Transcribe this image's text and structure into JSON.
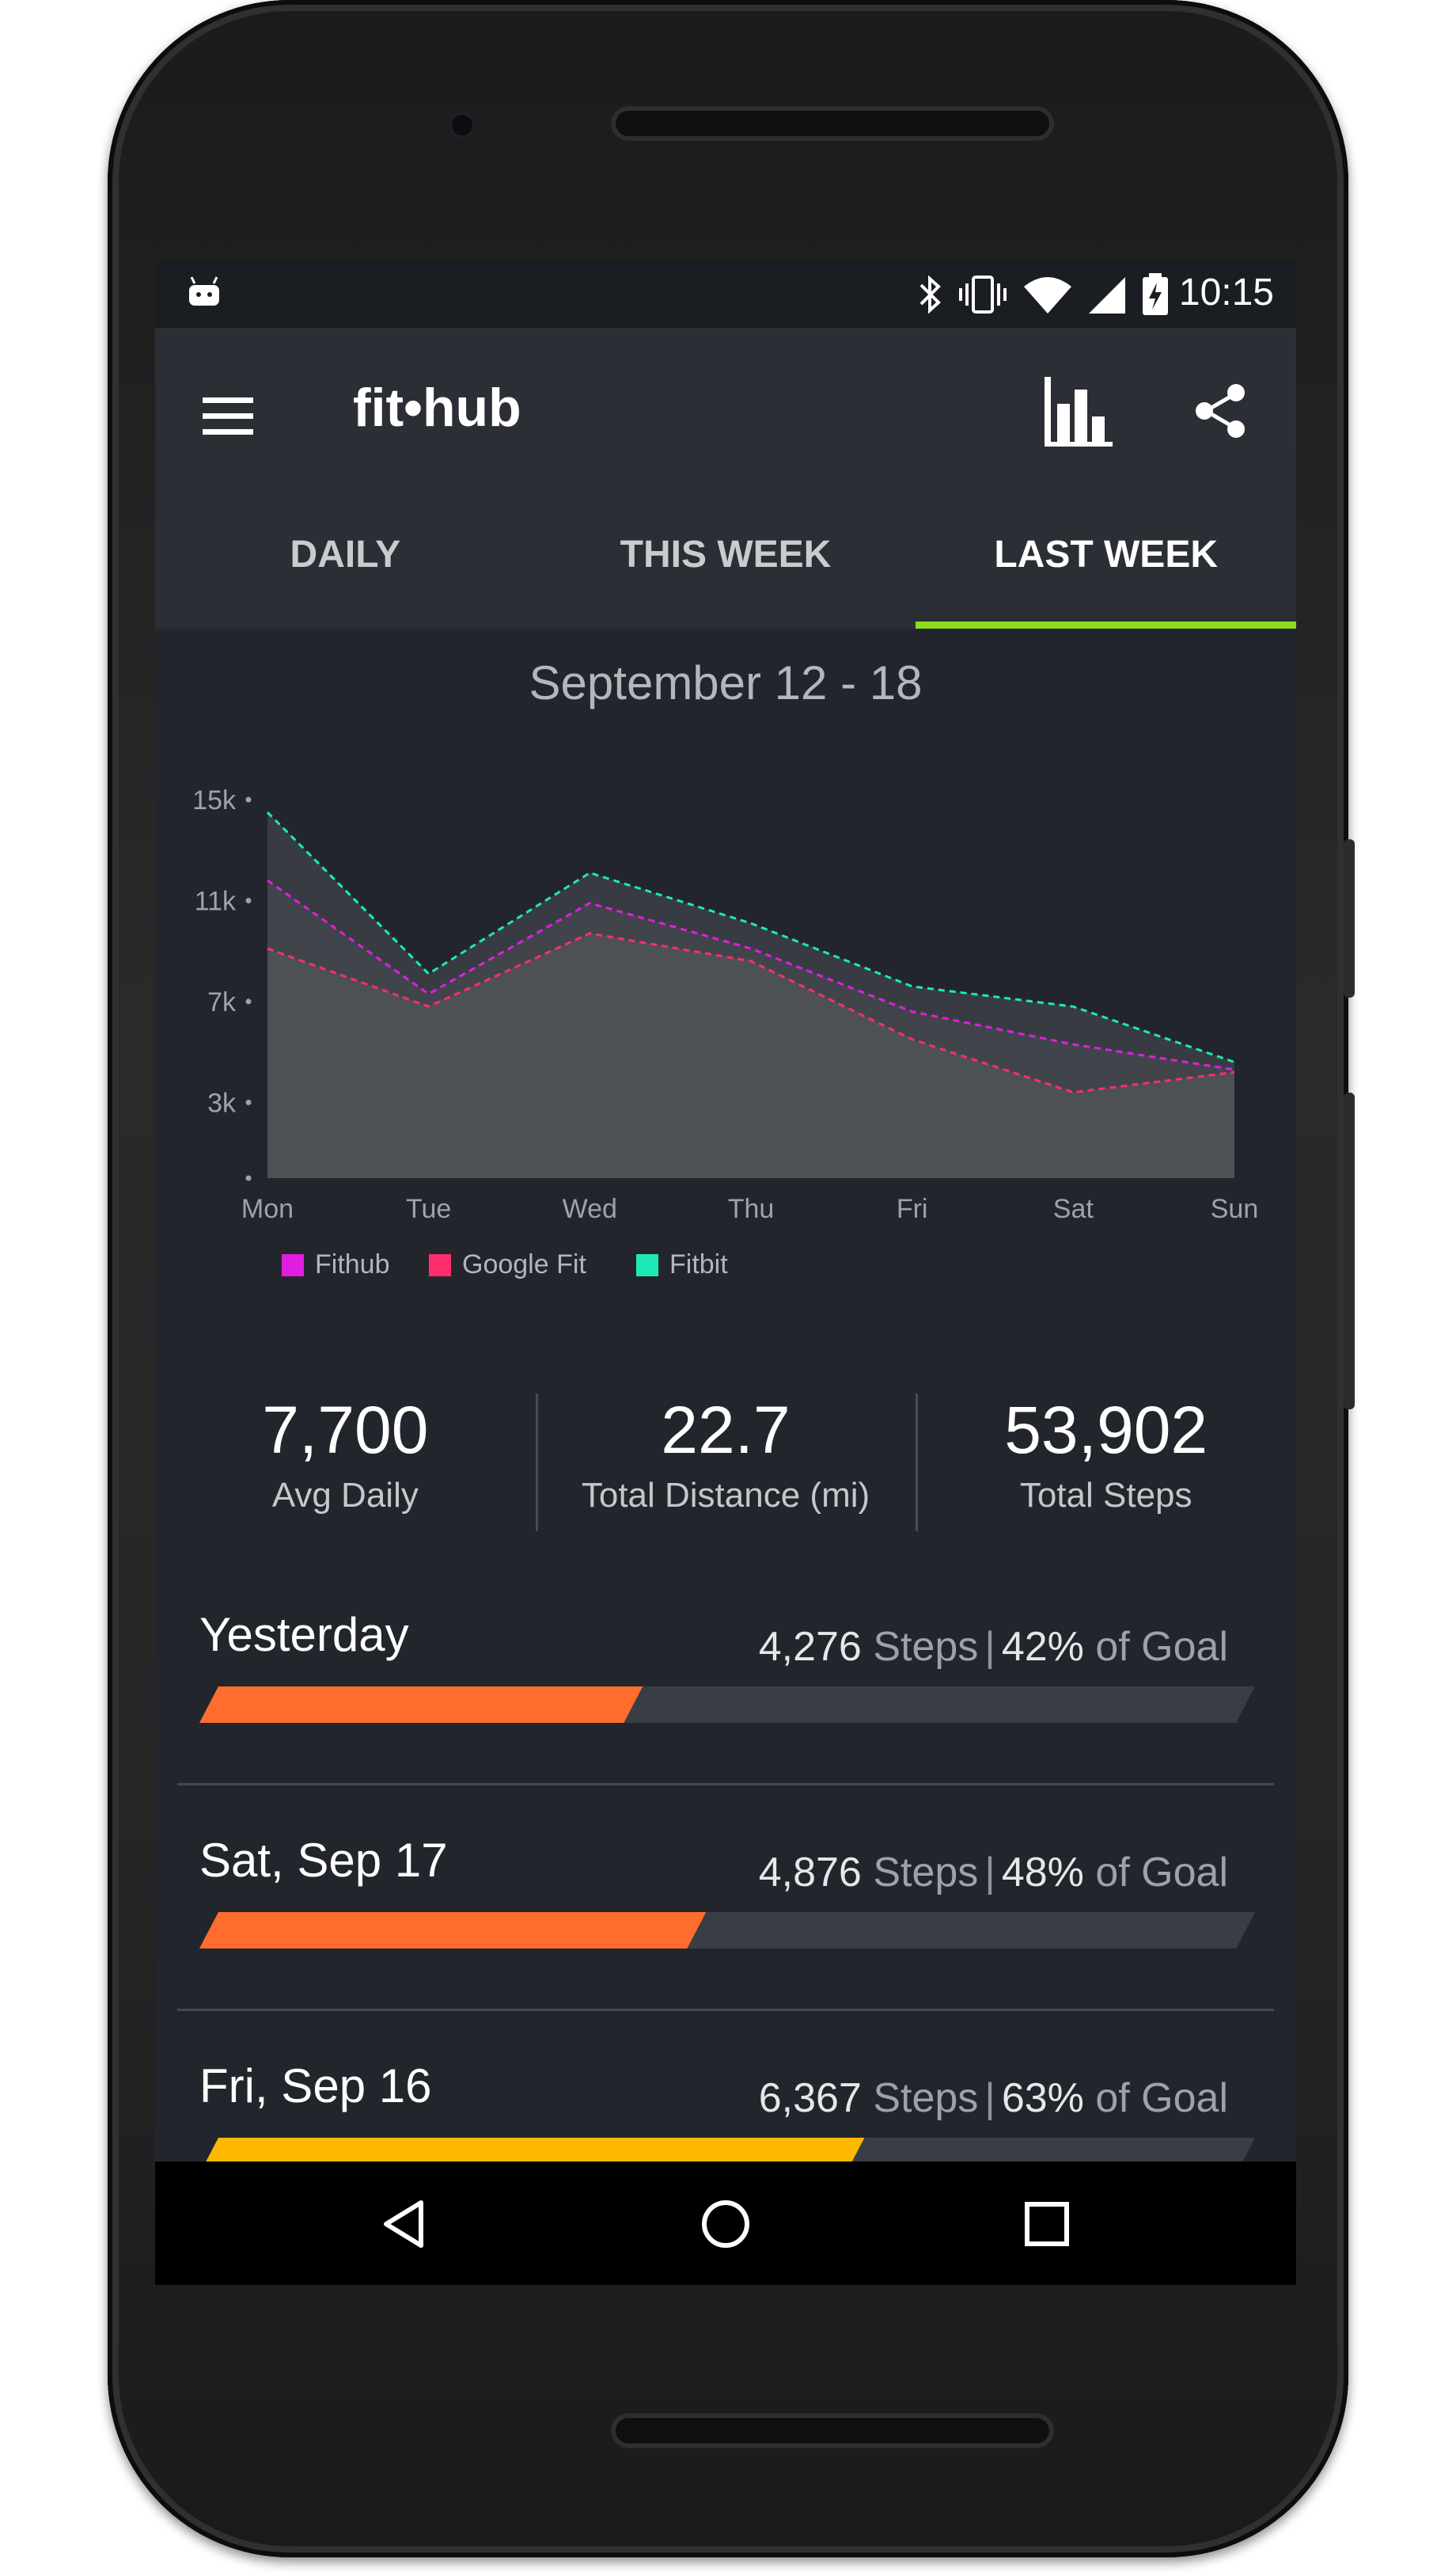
{
  "status_bar": {
    "time": "10:15",
    "icons": [
      "android-icon",
      "bluetooth-icon",
      "vibrate-icon",
      "wifi-icon",
      "signal-icon",
      "battery-charging-icon"
    ]
  },
  "app_bar": {
    "title": "fit•hub",
    "menu_icon": "menu-icon",
    "chart_icon": "bar-chart-icon",
    "share_icon": "share-icon"
  },
  "tabs": [
    {
      "label": "DAILY",
      "active": false
    },
    {
      "label": "THIS WEEK",
      "active": false
    },
    {
      "label": "LAST WEEK",
      "active": true
    }
  ],
  "date_range": "September 12 - 18",
  "chart_data": {
    "type": "area",
    "categories": [
      "Mon",
      "Tue",
      "Wed",
      "Thu",
      "Fri",
      "Sat",
      "Sun"
    ],
    "y_ticks": [
      "15k",
      "11k",
      "7k",
      "3k",
      ""
    ],
    "y_tick_values": [
      15000,
      11000,
      7000,
      3000,
      0
    ],
    "ylim": [
      0,
      15000
    ],
    "series": [
      {
        "name": "Fithub",
        "color": "#e01ee0",
        "values": [
          11800,
          7300,
          10900,
          9100,
          6600,
          5300,
          4300
        ]
      },
      {
        "name": "Google Fit",
        "color": "#ff2d6d",
        "values": [
          9100,
          6800,
          9700,
          8600,
          5500,
          3400,
          4200
        ]
      },
      {
        "name": "Fitbit",
        "color": "#1de9b6",
        "values": [
          14500,
          8100,
          12100,
          10100,
          7600,
          6800,
          4600
        ]
      }
    ],
    "grid": false,
    "legend_position": "bottom-left"
  },
  "stats": [
    {
      "value": "7,700",
      "label": "Avg Daily"
    },
    {
      "value": "22.7",
      "label": "Total Distance (mi)"
    },
    {
      "value": "53,902",
      "label": "Total Steps"
    }
  ],
  "days": [
    {
      "name": "Yesterday",
      "steps": "4,276",
      "steps_word": "Steps",
      "percent": "42%",
      "goal_word": "of Goal",
      "progress": 0.42,
      "color": "#ff6d2e"
    },
    {
      "name": "Sat, Sep 17",
      "steps": "4,876",
      "steps_word": "Steps",
      "percent": "48%",
      "goal_word": "of Goal",
      "progress": 0.48,
      "color": "#ff6d2e"
    },
    {
      "name": "Fri, Sep 16",
      "steps": "6,367",
      "steps_word": "Steps",
      "percent": "63%",
      "goal_word": "of Goal",
      "progress": 0.63,
      "color": "#ffb800"
    }
  ],
  "nav_bar": [
    "back-icon",
    "home-icon",
    "recents-icon"
  ]
}
